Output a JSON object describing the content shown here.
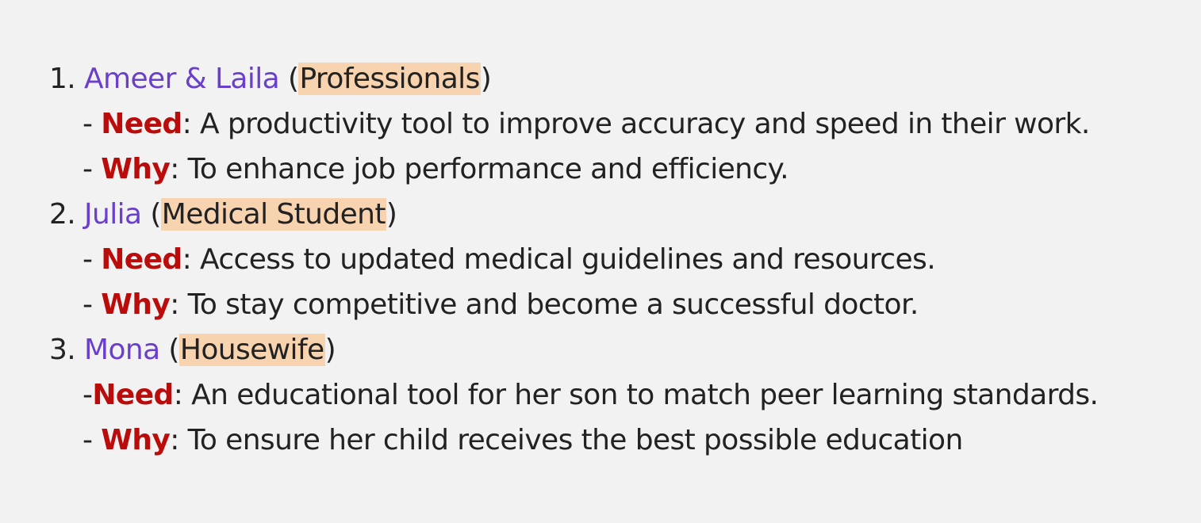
{
  "personas": [
    {
      "number": "1.",
      "name": "Ameer & Laila",
      "role": "Professionals",
      "need_prefix": "- ",
      "need_label": "Need",
      "need_text": ": A productivity tool to improve accuracy and speed in their work.",
      "why_prefix": "- ",
      "why_label": "Why",
      "why_text": ": To enhance job performance and efficiency."
    },
    {
      "number": "2.",
      "name": "Julia",
      "role": "Medical Student",
      "need_prefix": "- ",
      "need_label": "Need",
      "need_text": ": Access to updated medical guidelines and resources.",
      "why_prefix": "- ",
      "why_label": "Why",
      "why_text": ": To stay competitive and become a successful doctor."
    },
    {
      "number": "3.",
      "name": "Mona",
      "role": "Housewife",
      "need_prefix": "-",
      "need_label": "Need",
      "need_text": ": An educational tool for her son to match peer learning standards.",
      "why_prefix": "- ",
      "why_label": "Why",
      "why_text": ": To ensure her child receives the best possible education"
    }
  ],
  "colors": {
    "background": "#f2f2f2",
    "name": "#6a3fcc",
    "role_highlight": "#f8d3b0",
    "label": "#bb0c0c",
    "text": "#222222"
  }
}
